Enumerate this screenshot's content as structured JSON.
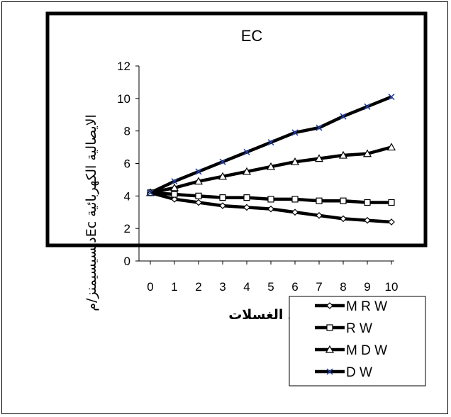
{
  "chart_data": {
    "type": "line",
    "title": "EC",
    "xlabel": "عدد الغسلات",
    "ylabel": "الايصالية الكهربائية  Ecديسيسيمنز/م",
    "x": [
      0,
      1,
      2,
      3,
      4,
      5,
      6,
      7,
      8,
      9,
      10
    ],
    "xlim": [
      0,
      10
    ],
    "ylim": [
      0,
      12
    ],
    "yticks": [
      0,
      2,
      4,
      6,
      8,
      10,
      12
    ],
    "grid": false,
    "legend_position": "bottom-right",
    "series": [
      {
        "name": "M R W",
        "marker": "diamond",
        "color": "#000000",
        "values": [
          4.2,
          3.8,
          3.6,
          3.4,
          3.3,
          3.2,
          3.0,
          2.8,
          2.6,
          2.5,
          2.4
        ]
      },
      {
        "name": "R W",
        "marker": "square",
        "color": "#000000",
        "values": [
          4.2,
          4.1,
          4.0,
          3.9,
          3.9,
          3.8,
          3.8,
          3.7,
          3.7,
          3.6,
          3.6
        ]
      },
      {
        "name": "M D W",
        "marker": "triangle",
        "color": "#000000",
        "values": [
          4.2,
          4.5,
          4.9,
          5.2,
          5.5,
          5.8,
          6.1,
          6.3,
          6.5,
          6.6,
          7.0
        ]
      },
      {
        "name": "D W",
        "marker": "x",
        "color": "#000000",
        "values": [
          4.2,
          4.9,
          5.5,
          6.1,
          6.7,
          7.3,
          7.9,
          8.2,
          8.9,
          9.5,
          10.1
        ]
      }
    ]
  }
}
